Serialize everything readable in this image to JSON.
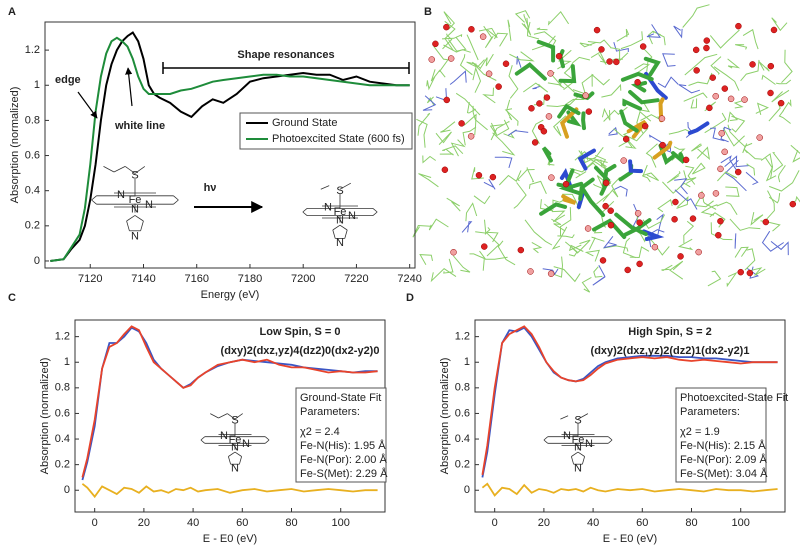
{
  "panel_labels": [
    "A",
    "B",
    "C",
    "D"
  ],
  "atom_labels": [
    "S",
    "Fe",
    "N"
  ],
  "chart_data": [
    {
      "type": "line",
      "xlabel": "Energy (eV)",
      "ylabel": "Absorption (normalized)",
      "xlim": [
        7103,
        7242
      ],
      "xticks": [
        7120,
        7140,
        7160,
        7180,
        7200,
        7220,
        7240
      ],
      "ylim": [
        -0.04,
        1.36
      ],
      "yticks": [
        0,
        0.2,
        0.4,
        0.6,
        0.8,
        1,
        1.2
      ],
      "x": [
        7105,
        7110,
        7113,
        7116,
        7118,
        7120,
        7122,
        7124,
        7126,
        7128,
        7130,
        7132,
        7134,
        7136,
        7138,
        7140,
        7142,
        7144,
        7146,
        7150,
        7154,
        7158,
        7162,
        7166,
        7170,
        7175,
        7180,
        7185,
        7190,
        7195,
        7200,
        7205,
        7210,
        7215,
        7220,
        7225,
        7230,
        7235,
        7240
      ],
      "series": [
        {
          "name": "Ground State",
          "color": "#000000",
          "values": [
            0,
            0.01,
            0.07,
            0.12,
            0.2,
            0.35,
            0.55,
            0.8,
            1.0,
            1.12,
            1.2,
            1.25,
            1.28,
            1.3,
            1.25,
            1.15,
            1.0,
            0.95,
            0.93,
            0.9,
            0.85,
            0.82,
            0.88,
            0.92,
            0.9,
            0.95,
            1.02,
            1.04,
            1.05,
            1.06,
            1.07,
            1.06,
            1.06,
            1.03,
            1.05,
            1.02,
            1.01,
            1.0,
            1.0
          ]
        },
        {
          "name": "Photoexcited State (600 fs)",
          "color": "#1e8c3a",
          "values": [
            0,
            0.01,
            0.08,
            0.15,
            0.3,
            0.55,
            0.85,
            1.05,
            1.18,
            1.25,
            1.27,
            1.25,
            1.22,
            1.15,
            1.05,
            0.98,
            0.95,
            0.95,
            0.95,
            0.95,
            0.97,
            0.98,
            1.0,
            1.02,
            1.03,
            1.04,
            1.05,
            1.06,
            1.06,
            1.05,
            1.05,
            1.04,
            1.03,
            1.02,
            1.01,
            1.0,
            1.0,
            1.0,
            1.0
          ]
        }
      ],
      "legend": "center right",
      "annotations": [
        "edge",
        "white line",
        "Shape resonances",
        "hν"
      ]
    },
    {
      "type": "line",
      "title": "Low Spin, S = 0",
      "subtitle": "(dxy)2(dxz,yz)4(dz2)0(dx2-y2)0",
      "xlabel": "E - E0 (eV)",
      "ylabel": "Absorption (normalized)",
      "xlim": [
        -8,
        118
      ],
      "xticks": [
        0,
        20,
        40,
        60,
        80,
        100
      ],
      "ylim": [
        -0.17,
        1.33
      ],
      "yticks": [
        0,
        0.2,
        0.4,
        0.6,
        0.8,
        1,
        1.2
      ],
      "x": [
        -5,
        -3,
        0,
        3,
        6,
        9,
        12,
        15,
        18,
        21,
        24,
        27,
        30,
        33,
        36,
        39,
        42,
        45,
        50,
        55,
        60,
        65,
        70,
        75,
        80,
        85,
        90,
        95,
        100,
        105,
        110,
        115
      ],
      "series": [
        {
          "color": "#3a55c4",
          "values": [
            0.08,
            0.22,
            0.5,
            0.95,
            1.15,
            1.15,
            1.2,
            1.27,
            1.24,
            1.15,
            1.02,
            0.95,
            0.9,
            0.85,
            0.8,
            0.83,
            0.88,
            0.92,
            0.97,
            1.0,
            1.02,
            1.01,
            1.0,
            0.99,
            0.98,
            0.96,
            0.95,
            0.94,
            0.93,
            0.92,
            0.93,
            0.93
          ]
        },
        {
          "color": "#e8432b",
          "values": [
            0.1,
            0.25,
            0.55,
            0.95,
            1.12,
            1.15,
            1.22,
            1.28,
            1.25,
            1.12,
            1.0,
            0.95,
            0.9,
            0.85,
            0.8,
            0.82,
            0.88,
            0.92,
            0.98,
            1.0,
            1.02,
            1.0,
            1.02,
            0.98,
            0.96,
            0.96,
            0.94,
            0.92,
            0.93,
            0.92,
            0.92,
            0.93
          ]
        },
        {
          "color": "#e8b020",
          "values": [
            0.05,
            0.02,
            -0.05,
            0.03,
            0,
            -0.03,
            0.02,
            0.01,
            -0.02,
            0.03,
            -0.01,
            0,
            -0.02,
            0.01,
            0,
            0.02,
            -0.01,
            0,
            0.01,
            -0.02,
            0,
            0.01,
            -0.01,
            0,
            0.01,
            -0.01,
            0,
            0.01,
            0,
            -0.01,
            0,
            0
          ]
        }
      ],
      "fit_box": [
        "Ground-State Fit",
        "Parameters:",
        "χ2 = 2.4",
        "Fe-N(His): 1.95 Å",
        "Fe-N(Por): 2.00 Å",
        "Fe-S(Met): 2.29 Å"
      ]
    },
    {
      "type": "line",
      "title": "High Spin, S = 2",
      "subtitle": "(dxy)2(dxz,yz)2(dz2)1(dx2-y2)1",
      "xlabel": "E - E0 (eV)",
      "ylabel": "Absorption (normalized)",
      "xlim": [
        -8,
        118
      ],
      "xticks": [
        0,
        20,
        40,
        60,
        80,
        100
      ],
      "ylim": [
        -0.17,
        1.33
      ],
      "yticks": [
        0,
        0.2,
        0.4,
        0.6,
        0.8,
        1,
        1.2
      ],
      "x": [
        -5,
        -3,
        0,
        3,
        6,
        9,
        12,
        15,
        18,
        21,
        24,
        27,
        30,
        33,
        36,
        39,
        42,
        45,
        50,
        55,
        60,
        65,
        70,
        75,
        80,
        85,
        90,
        95,
        100,
        105,
        110,
        115
      ],
      "series": [
        {
          "color": "#3a55c4",
          "values": [
            0.1,
            0.3,
            0.75,
            1.15,
            1.25,
            1.24,
            1.27,
            1.2,
            1.1,
            1.0,
            0.92,
            0.88,
            0.86,
            0.85,
            0.87,
            0.92,
            0.97,
            1.0,
            1.03,
            1.04,
            1.05,
            1.05,
            1.05,
            1.04,
            1.04,
            1.03,
            1.03,
            1.02,
            1.01,
            1.0,
            1.0,
            1.0
          ]
        },
        {
          "color": "#e8432b",
          "values": [
            0.12,
            0.35,
            0.8,
            1.15,
            1.22,
            1.25,
            1.28,
            1.22,
            1.12,
            1.0,
            0.93,
            0.88,
            0.86,
            0.85,
            0.86,
            0.9,
            0.95,
            0.99,
            1.02,
            1.03,
            1.04,
            1.03,
            1.04,
            1.02,
            1.01,
            1.02,
            1.01,
            1.0,
            0.99,
            1.0,
            1.0,
            1.0
          ]
        },
        {
          "color": "#e8b020",
          "values": [
            0.02,
            0.05,
            -0.04,
            0.02,
            0.01,
            -0.03,
            0.04,
            -0.02,
            0.01,
            0,
            -0.02,
            0.01,
            0,
            0.01,
            -0.01,
            0.02,
            0,
            -0.01,
            0.01,
            0,
            0.01,
            -0.01,
            0,
            0.01,
            0,
            -0.01,
            0.01,
            0,
            0,
            -0.01,
            0,
            0.01
          ]
        }
      ],
      "fit_box": [
        "Photoexcited-State Fit",
        "Parameters:",
        "χ2 = 1.9",
        "Fe-N(His): 2.15 Å",
        "Fe-N(Por): 2.09 Å",
        "Fe-S(Met): 3.04 Å"
      ]
    }
  ]
}
